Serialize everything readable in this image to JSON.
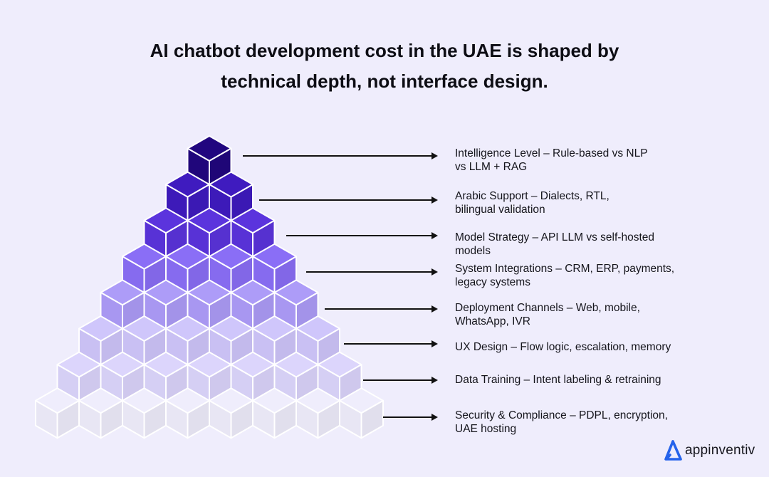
{
  "title": {
    "line1": "AI chatbot development cost in the UAE is shaped by",
    "line2": "technical depth, not interface design."
  },
  "pyramid": {
    "rows": 8,
    "row_colors": [
      "#21067f",
      "#3f1bbf",
      "#5b34dd",
      "#8a6ef6",
      "#ad9cf8",
      "#cfc6fb",
      "#dcd5fc",
      "#efedfc"
    ],
    "edge_color": "#ffffff"
  },
  "layers": [
    {
      "line1": "Intelligence Level – Rule-based vs NLP",
      "line2": "vs LLM + RAG"
    },
    {
      "line1": "Arabic Support – Dialects, RTL,",
      "line2": "bilingual validation"
    },
    {
      "line1": "Model Strategy – API LLM vs self-hosted",
      "line2": "models"
    },
    {
      "line1": "System Integrations – CRM, ERP, payments,",
      "line2": "legacy systems"
    },
    {
      "line1": "Deployment Channels – Web, mobile,",
      "line2": "WhatsApp, IVR"
    },
    {
      "line1": "UX Design – Flow logic, escalation, memory",
      "line2": ""
    },
    {
      "line1": "Data Training – Intent labeling & retraining",
      "line2": ""
    },
    {
      "line1": "Security & Compliance – PDPL, encryption,",
      "line2": "UAE hosting"
    }
  ],
  "logo": {
    "text": "appinventiv",
    "icon": "appinventiv-a-logo-icon",
    "color": "#2563eb"
  }
}
